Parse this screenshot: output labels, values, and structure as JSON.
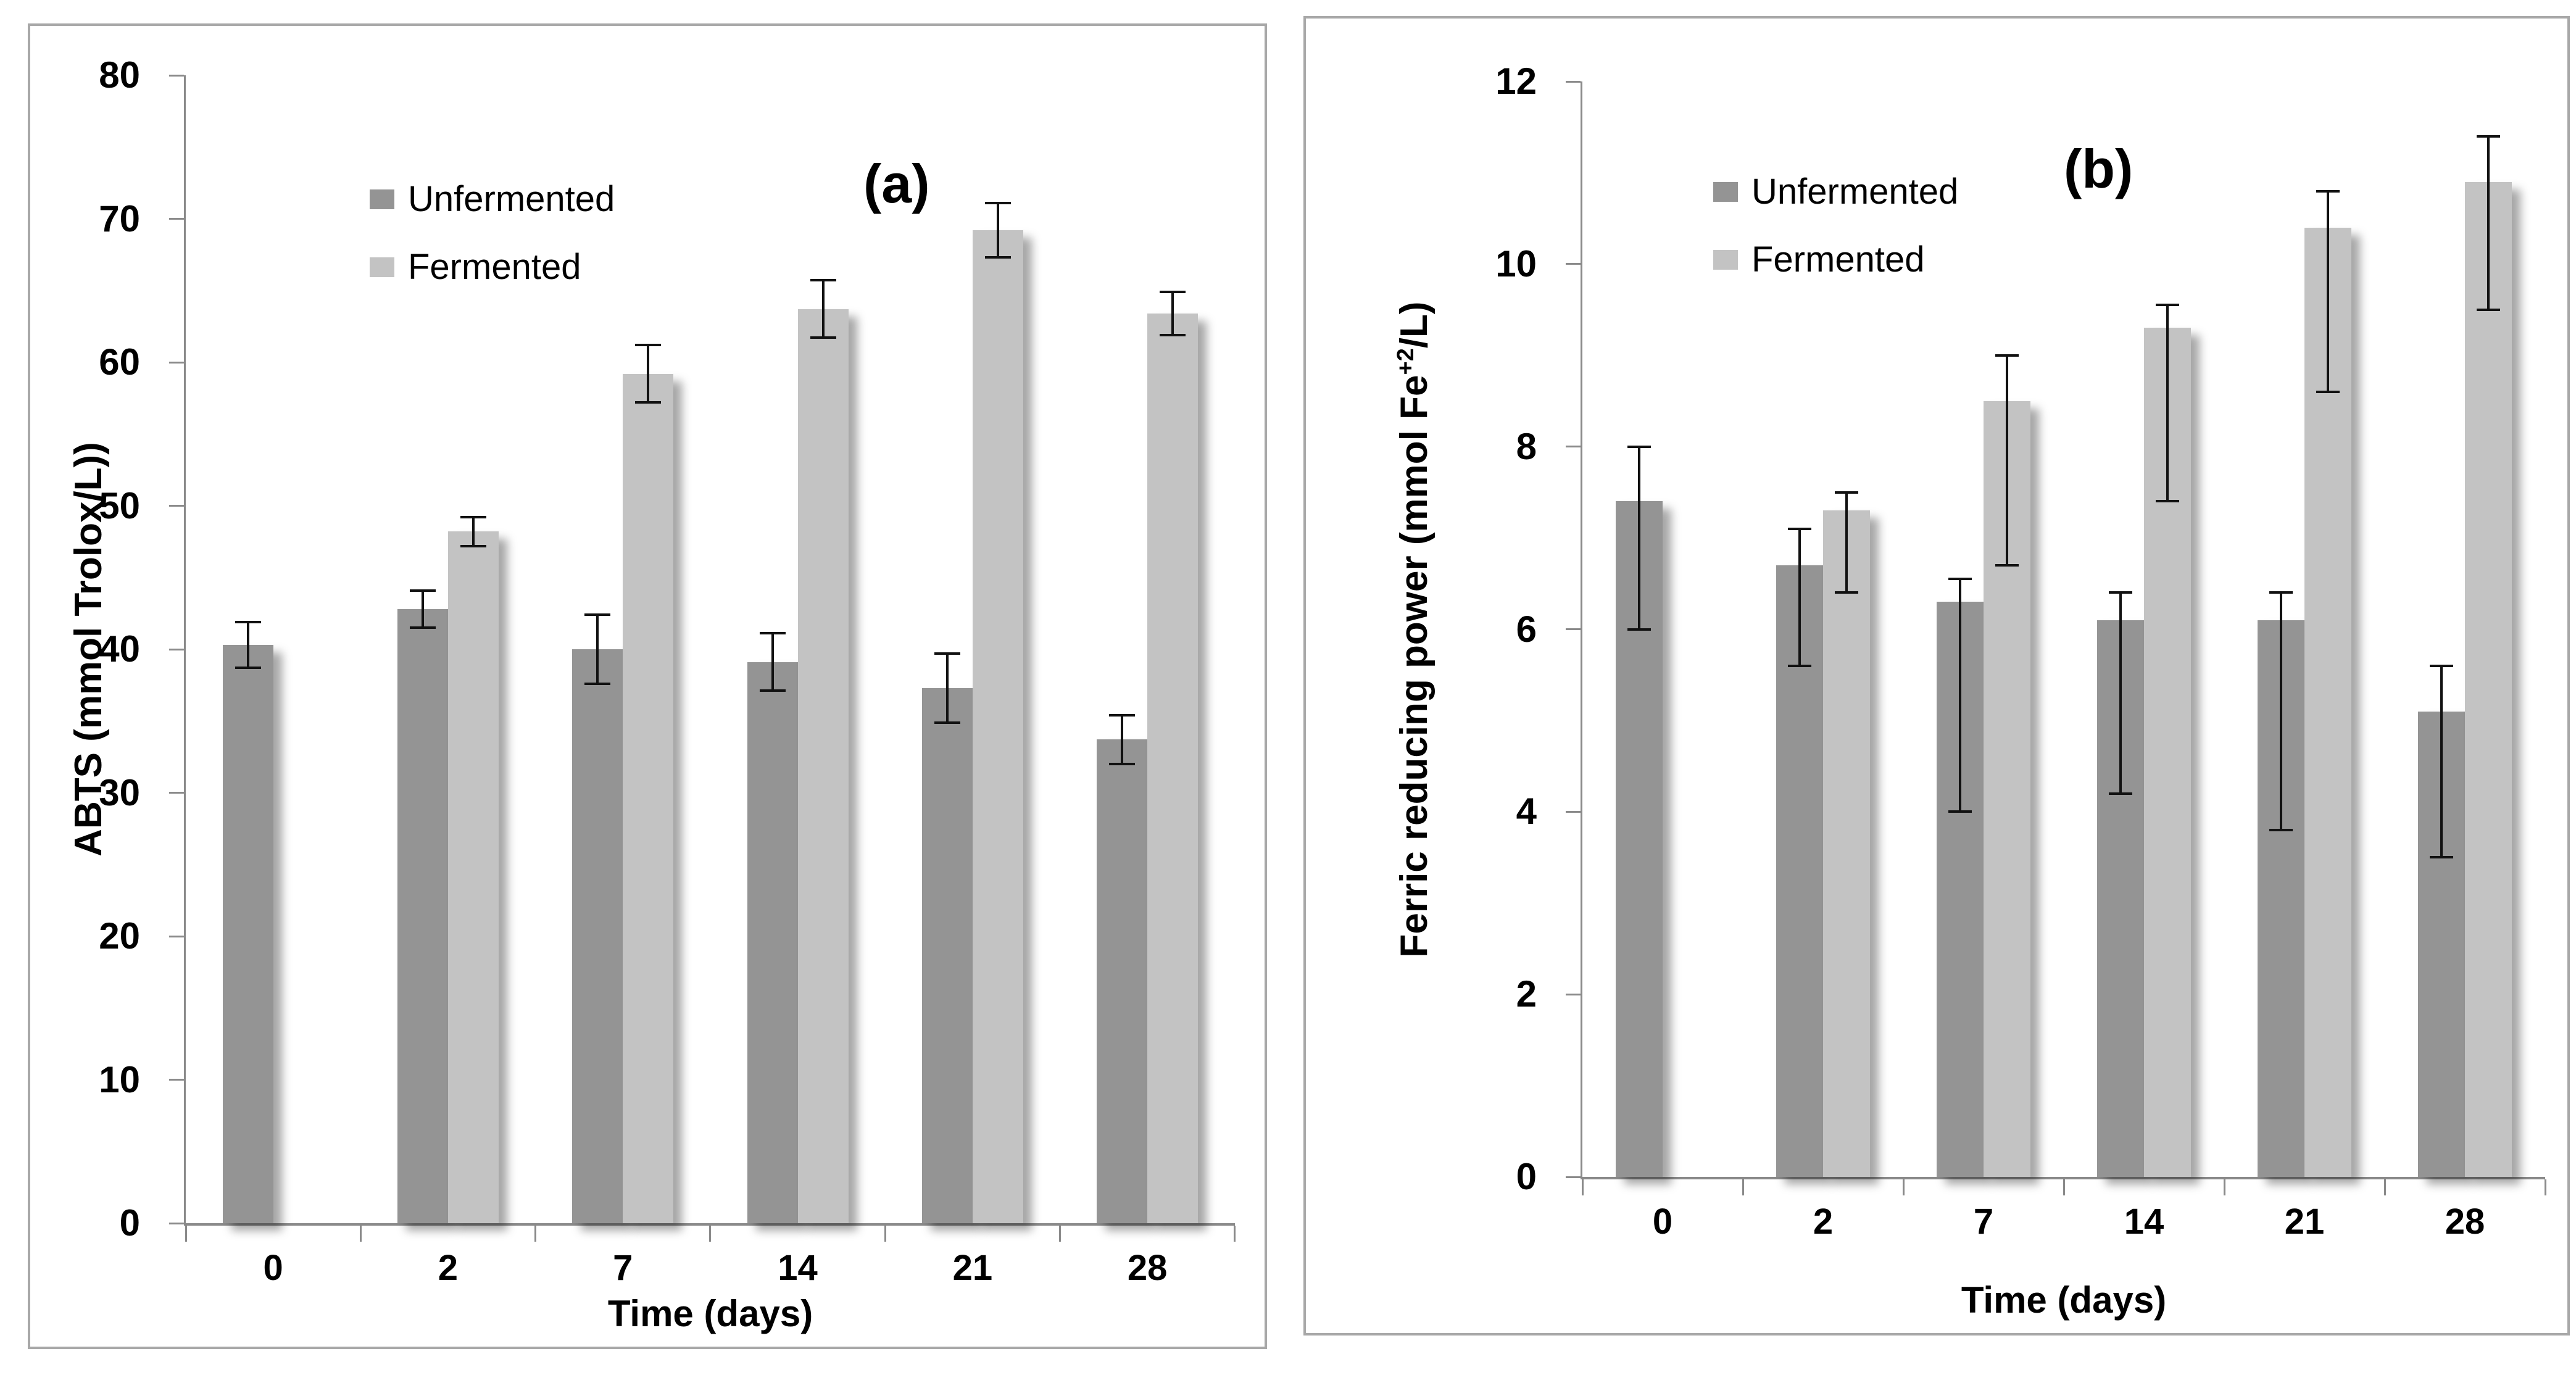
{
  "figure": {
    "description": "Two-panel grayscale bar chart figure comparing unfermented vs fermented samples over time",
    "colors": {
      "unfermented": "#949494",
      "fermented": "#C3C3C3",
      "axis": "#8a8a8a",
      "panel_border": "#a8a8a8",
      "error_bar": "#111111",
      "background": "#ffffff"
    }
  },
  "chart_data": [
    {
      "type": "bar",
      "panel_label": "(a)",
      "title": "",
      "categories": [
        "0",
        "2",
        "7",
        "14",
        "21",
        "28"
      ],
      "xlabel": "Time (days)",
      "ylabel": "ABTS (mmol Trolox/L))",
      "ylim": [
        0,
        80
      ],
      "ytick_step": 10,
      "grid": false,
      "legend_position": "upper-left",
      "series": [
        {
          "name": "Unfermented",
          "color": "#949494",
          "values": [
            40.3,
            42.8,
            40.0,
            39.1,
            37.3,
            33.7
          ],
          "err_up": [
            1.6,
            1.3,
            2.4,
            2.0,
            2.4,
            1.7
          ],
          "err_down": [
            1.6,
            1.3,
            2.4,
            2.0,
            2.4,
            1.7
          ]
        },
        {
          "name": "Fermented",
          "color": "#C3C3C3",
          "values": [
            null,
            48.2,
            59.2,
            63.7,
            69.2,
            63.4
          ],
          "err_up": [
            null,
            1.0,
            2.0,
            2.0,
            1.9,
            1.5
          ],
          "err_down": [
            null,
            1.0,
            2.0,
            2.0,
            1.9,
            1.5
          ]
        }
      ]
    },
    {
      "type": "bar",
      "panel_label": "(b)",
      "title": "",
      "categories": [
        "0",
        "2",
        "7",
        "14",
        "21",
        "28"
      ],
      "xlabel": "Time (days)",
      "ylabel": "Ferric reducing power (mmol Fe+2/L)",
      "ylabel_parts": {
        "base": "Ferric reducing power (mmol Fe",
        "sup": "+2",
        "end": "/L)"
      },
      "ylim": [
        0,
        12
      ],
      "ytick_step": 2,
      "grid": false,
      "legend_position": "upper-left",
      "series": [
        {
          "name": "Unfermented",
          "color": "#949494",
          "values": [
            7.4,
            6.7,
            6.3,
            6.1,
            6.1,
            5.1
          ],
          "err_up": [
            0.6,
            0.4,
            0.25,
            0.3,
            0.3,
            0.5
          ],
          "err_down": [
            1.4,
            1.1,
            2.3,
            1.9,
            2.3,
            1.6
          ]
        },
        {
          "name": "Fermented",
          "color": "#C3C3C3",
          "values": [
            null,
            7.3,
            8.5,
            9.3,
            10.4,
            10.9
          ],
          "err_up": [
            null,
            0.2,
            0.5,
            0.25,
            0.4,
            0.5
          ],
          "err_down": [
            null,
            0.9,
            1.8,
            1.9,
            1.8,
            1.4
          ]
        }
      ]
    }
  ]
}
